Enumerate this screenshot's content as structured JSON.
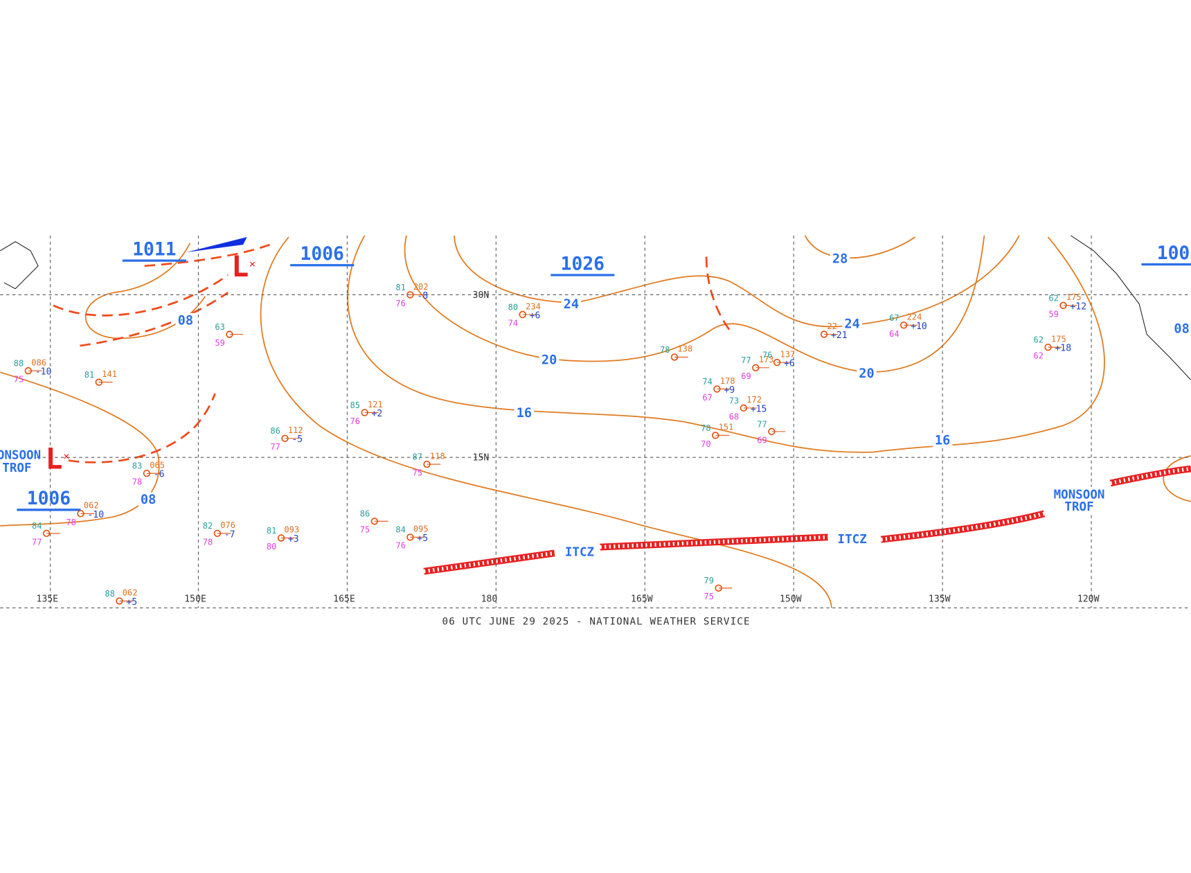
{
  "map": {
    "footer": "06 UTC JUNE 29 2025 - NATIONAL WEATHER SERVICE",
    "lon_labels": [
      "135E",
      "150E",
      "165E",
      "180",
      "165W",
      "150W",
      "135W",
      "120W"
    ],
    "lat_labels": [
      "30N",
      "15N"
    ],
    "centers": [
      "1011",
      "1006",
      "1026",
      "1006",
      "100"
    ],
    "lows": [
      "L",
      "L"
    ],
    "isobar_labels": [
      "08",
      "24",
      "20",
      "16",
      "28",
      "24",
      "20",
      "16",
      "08",
      "08"
    ],
    "features": [
      "ITCZ",
      "ITCZ",
      "MONSOON",
      "TROF",
      "MONSOON",
      "TROF"
    ],
    "stations": [
      {
        "t": "81",
        "p": "202",
        "d": "76",
        "tend": "-8"
      },
      {
        "t": "80",
        "p": "234",
        "d": "74",
        "tend": "+6"
      },
      {
        "t": "85",
        "p": "121",
        "d": "76",
        "tend": "+2"
      },
      {
        "t": "86",
        "p": "112",
        "d": "77",
        "tend": "-5"
      },
      {
        "t": "87",
        "p": "118",
        "d": "75"
      },
      {
        "t": "83",
        "p": "065",
        "d": "78",
        "tend": "-6"
      },
      {
        "p": "062",
        "d": "78",
        "tend": "-10"
      },
      {
        "t": "82",
        "p": "076",
        "d": "78",
        "tend": "-7"
      },
      {
        "t": "81",
        "p": "093",
        "d": "80",
        "tend": "+3"
      },
      {
        "t": "84",
        "p": "095",
        "d": "76",
        "tend": "+5"
      },
      {
        "t": "78",
        "p": "138"
      },
      {
        "t": "74",
        "p": "178",
        "d": "67",
        "tend": "+9"
      },
      {
        "t": "73",
        "p": "172",
        "d": "68",
        "tend": "+15"
      },
      {
        "t": "77",
        "p": "173",
        "d": "69"
      },
      {
        "t": "76",
        "p": "137",
        "tend": "+6"
      },
      {
        "t": "78",
        "p": "151",
        "d": "70"
      },
      {
        "t": "77",
        "d": "69"
      },
      {
        "p": "22",
        "tend": "+21"
      },
      {
        "t": "67",
        "p": "224",
        "d": "64",
        "tend": "+10"
      },
      {
        "t": "62",
        "p": "175",
        "d": "62",
        "tend": "+18"
      },
      {
        "t": "62",
        "p": "175",
        "d": "59",
        "tend": "+12"
      },
      {
        "t": "63",
        "d": "59"
      },
      {
        "t": "81",
        "p": "141"
      },
      {
        "t": "88",
        "p": "086",
        "d": "75",
        "tend": "-10"
      },
      {
        "t": "88",
        "p": "062",
        "tend": "+5"
      },
      {
        "t": "79",
        "d": "75"
      },
      {
        "t": "86",
        "d": "75"
      },
      {
        "t": "84",
        "d": "77"
      }
    ]
  }
}
